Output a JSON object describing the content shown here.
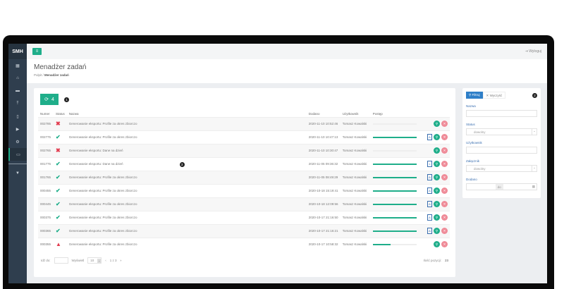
{
  "app": {
    "brand": "SMH",
    "logout": "Wyloguj"
  },
  "sidebar": {
    "items": [
      {
        "icon": "dashboard-icon"
      },
      {
        "icon": "bank-icon"
      },
      {
        "icon": "folder-icon"
      },
      {
        "icon": "upload-icon"
      },
      {
        "icon": "mobile-icon"
      },
      {
        "icon": "video-icon"
      },
      {
        "icon": "gear-icon"
      },
      {
        "icon": "monitor-icon",
        "active": true
      },
      {
        "icon": "filter-icon"
      }
    ]
  },
  "header": {
    "title": "Menadżer zadań",
    "breadcrumb": [
      "Pulpit",
      "Menadżer zadań"
    ]
  },
  "toolbar": {
    "refresh_count": "4",
    "badge": "1"
  },
  "table": {
    "columns": [
      "Numer",
      "Status",
      "Nazwa",
      "Dodano",
      "Użytkownik",
      "Postęp"
    ],
    "rows": [
      {
        "numer": "002785",
        "status": "error",
        "nazwa": "Generowanie eksportu: Profile za okres zbiorczo",
        "dodano": "2020-11-10 10:52:46",
        "user": "Tomasz Kowalski",
        "progress": 0,
        "file": false
      },
      {
        "numer": "002775",
        "status": "ok",
        "nazwa": "Generowanie eksportu: Profile za okres zbiorczo",
        "dodano": "2020-11-10 10:47:13",
        "user": "Tomasz Kowalski",
        "progress": 100,
        "file": "pdf"
      },
      {
        "numer": "002765",
        "status": "error",
        "nazwa": "Generowanie eksportu: Dane na dzień",
        "dodano": "2020-11-10 10:30:47",
        "user": "Tomasz Kowalski",
        "progress": 0,
        "file": false
      },
      {
        "numer": "001775",
        "status": "ok",
        "nazwa": "Generowanie eksportu: Dane na dzień",
        "dodano": "2020-11-05 09:36:32",
        "user": "Tomasz Kowalski",
        "progress": 100,
        "file": "xls",
        "badge": "3"
      },
      {
        "numer": "001765",
        "status": "ok",
        "nazwa": "Generowanie eksportu: Profile za okres zbiorczo",
        "dodano": "2020-11-05 08:49:29",
        "user": "Tomasz Kowalski",
        "progress": 100,
        "file": "pdf"
      },
      {
        "numer": "000455",
        "status": "ok",
        "nazwa": "Generowanie eksportu: Profile za okres zbiorczo",
        "dodano": "2020-10-18 15:19:41",
        "user": "Tomasz Kowalski",
        "progress": 100,
        "file": "pdf"
      },
      {
        "numer": "000445",
        "status": "ok",
        "nazwa": "Generowanie eksportu: Profile za okres zbiorczo",
        "dodano": "2020-10-18 12:09:56",
        "user": "Tomasz Kowalski",
        "progress": 100,
        "file": "pdf"
      },
      {
        "numer": "000375",
        "status": "ok",
        "nazwa": "Generowanie eksportu: Profile za okres zbiorczo",
        "dodano": "2020-10-17 21:16:50",
        "user": "Tomasz Kowalski",
        "progress": 100,
        "file": "pdf"
      },
      {
        "numer": "000365",
        "status": "ok",
        "nazwa": "Generowanie eksportu: Profile za okres zbiorczo",
        "dodano": "2020-10-17 21:16:21",
        "user": "Tomasz Kowalski",
        "progress": 100,
        "file": "pdf"
      },
      {
        "numer": "000355",
        "status": "warning",
        "nazwa": "Generowanie eksportu: Profile za okres zbiorczo",
        "dodano": "2020-10-17 10:58:32",
        "user": "Tomasz Kowalski",
        "progress": 40,
        "file": false
      }
    ]
  },
  "footer": {
    "goto_label": "Idź do:",
    "show_label": "Wyświetl",
    "per_page": "10",
    "pages": "1 z 3",
    "count_label": "Ilość pozycji:",
    "count": "23"
  },
  "filter": {
    "filter_btn": "Filtruj",
    "clear_btn": "Wyczyść",
    "badge": "2",
    "name_label": "Nazwa",
    "status_label": "Status",
    "status_value": "dowolny",
    "user_label": "Użytkownik",
    "attachment_label": "Załącznik",
    "attachment_value": "dowolny",
    "added_label": "Dodano",
    "range_sep": "do"
  },
  "colors": {
    "accent": "#1fae8a",
    "danger": "#e23b4e",
    "sidebar": "#2f3e4e",
    "primary": "#3a6fb0"
  }
}
